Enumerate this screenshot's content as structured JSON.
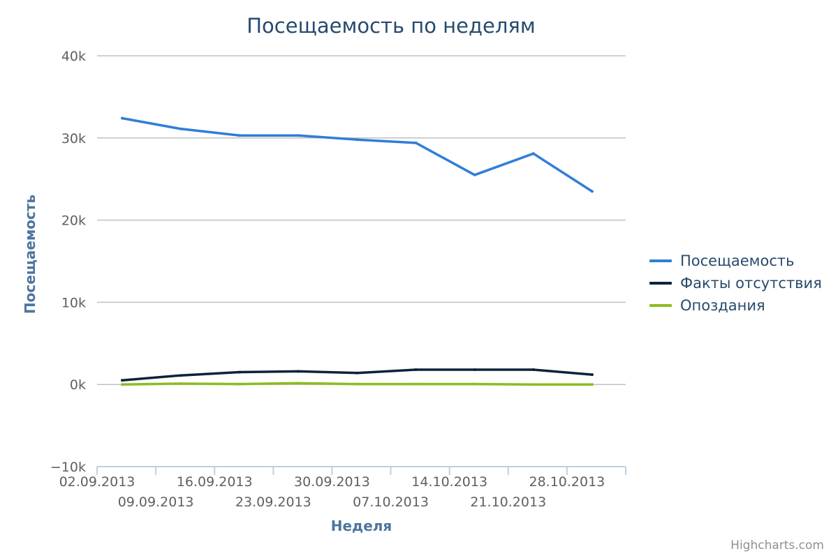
{
  "title": "Посещаемость по неделям",
  "credits": "Highcharts.com",
  "colors": {
    "title": "#274b6d",
    "axis_title": "#4d759e",
    "tick_label": "#606060",
    "grid": "#c0c0c0",
    "axis_line": "#c0d0e0"
  },
  "chart_data": {
    "type": "line",
    "title": "Посещаемость по неделям",
    "xlabel": "Неделя",
    "ylabel": "Посещаемость",
    "ylim": [
      -10000,
      40000
    ],
    "yticks": [
      -10000,
      0,
      10000,
      20000,
      30000,
      40000
    ],
    "ytick_labels": [
      "−10k",
      "0k",
      "10k",
      "20k",
      "30k",
      "40k"
    ],
    "x_range": [
      "2013-09-02",
      "2013-11-04"
    ],
    "xtick_labels": [
      "02.09.2013",
      "09.09.2013",
      "16.09.2013",
      "23.09.2013",
      "30.09.2013",
      "07.10.2013",
      "14.10.2013",
      "21.10.2013",
      "28.10.2013"
    ],
    "xticks": [
      "2013-09-02",
      "2013-09-09",
      "2013-09-16",
      "2013-09-23",
      "2013-09-30",
      "2013-10-07",
      "2013-10-14",
      "2013-10-21",
      "2013-10-28",
      "2013-11-04"
    ],
    "x": [
      "2013-09-05",
      "2013-09-12",
      "2013-09-19",
      "2013-09-26",
      "2013-10-03",
      "2013-10-10",
      "2013-10-17",
      "2013-10-24",
      "2013-10-31"
    ],
    "grid": true,
    "legend_position": "right",
    "series": [
      {
        "name": "Посещаемость",
        "color": "#2f7ed8",
        "values": [
          32400,
          31100,
          30300,
          30300,
          29800,
          29400,
          25500,
          28100,
          23500
        ]
      },
      {
        "name": "Факты отсутствия",
        "color": "#0d233a",
        "values": [
          500,
          1100,
          1500,
          1600,
          1400,
          1800,
          1800,
          1800,
          1200
        ]
      },
      {
        "name": "Опоздания",
        "color": "#8bbc21",
        "values": [
          0,
          100,
          50,
          150,
          50,
          50,
          50,
          0,
          0
        ]
      }
    ]
  }
}
